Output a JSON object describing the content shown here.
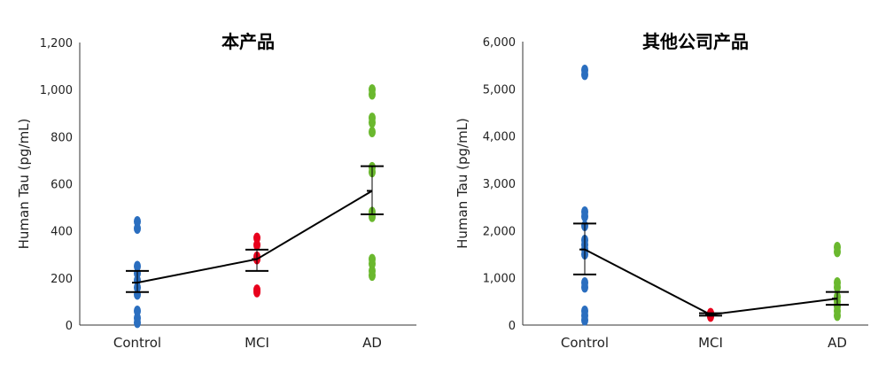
{
  "chart_data": [
    {
      "type": "scatter",
      "title": "本产品",
      "ylabel": "Human Tau  (pg/mL)",
      "xlabel": "",
      "categories": [
        "Control",
        "MCI",
        "AD"
      ],
      "ylim": [
        0,
        1200
      ],
      "yticks": [
        "0",
        "200",
        "400",
        "600",
        "800",
        "1,000",
        "1,200"
      ],
      "grid": false,
      "colors": [
        "#2a6ebf",
        "#e8001c",
        "#6ab82e"
      ],
      "points": [
        [
          440,
          410,
          250,
          220,
          190,
          160,
          130,
          60,
          30,
          10
        ],
        [
          370,
          340,
          290,
          280,
          150,
          140
        ],
        [
          1000,
          980,
          880,
          860,
          820,
          670,
          650,
          480,
          460,
          280,
          260,
          230,
          210
        ]
      ],
      "mean": [
        180,
        280,
        570
      ],
      "error_upper": [
        230,
        320,
        675
      ],
      "error_lower": [
        140,
        230,
        470
      ]
    },
    {
      "type": "scatter",
      "title": "其他公司产品",
      "ylabel": "Human Tau  (pg/mL)",
      "xlabel": "",
      "categories": [
        "Control",
        "MCI",
        "AD"
      ],
      "ylim": [
        0,
        6000
      ],
      "yticks": [
        "0",
        "1,000",
        "2,000",
        "3,000",
        "4,000",
        "5,000",
        "6,000"
      ],
      "grid": false,
      "colors": [
        "#2a6ebf",
        "#e8001c",
        "#6ab82e"
      ],
      "points": [
        [
          5400,
          5300,
          2400,
          2300,
          2100,
          1800,
          1700,
          1600,
          1500,
          900,
          800,
          300,
          200,
          100
        ],
        [
          250,
          230,
          200,
          180
        ],
        [
          1650,
          1550,
          900,
          800,
          600,
          500,
          400,
          300,
          200
        ]
      ],
      "mean": [
        1600,
        220,
        560
      ],
      "error_upper": [
        2150,
        250,
        700
      ],
      "error_lower": [
        1070,
        200,
        430
      ]
    }
  ]
}
